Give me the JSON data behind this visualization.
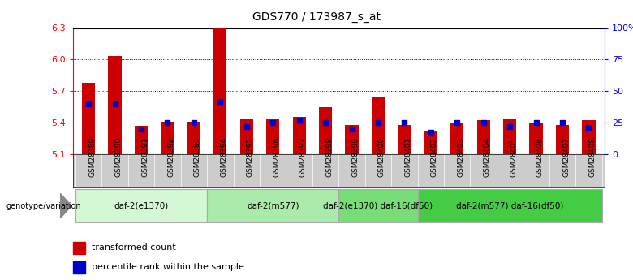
{
  "title": "GDS770 / 173987_s_at",
  "samples": [
    "GSM28389",
    "GSM28390",
    "GSM28391",
    "GSM28392",
    "GSM28393",
    "GSM28394",
    "GSM28395",
    "GSM28396",
    "GSM28397",
    "GSM28398",
    "GSM28399",
    "GSM28400",
    "GSM28401",
    "GSM28402",
    "GSM28403",
    "GSM28404",
    "GSM28405",
    "GSM28406",
    "GSM28407",
    "GSM28408"
  ],
  "transformed_count": [
    5.78,
    6.03,
    5.37,
    5.41,
    5.41,
    6.3,
    5.43,
    5.43,
    5.45,
    5.55,
    5.38,
    5.64,
    5.38,
    5.32,
    5.4,
    5.42,
    5.43,
    5.4,
    5.38,
    5.42
  ],
  "percentile": [
    40,
    40,
    20,
    25,
    25,
    42,
    22,
    25,
    27,
    25,
    20,
    25,
    25,
    17,
    25,
    25,
    22,
    25,
    25,
    21
  ],
  "ylim_left": [
    5.1,
    6.3
  ],
  "ylim_right": [
    0,
    100
  ],
  "yticks_left": [
    5.1,
    5.4,
    5.7,
    6.0,
    6.3
  ],
  "yticks_right": [
    0,
    25,
    50,
    75,
    100
  ],
  "yticks_right_labels": [
    "0",
    "25",
    "50",
    "75",
    "100%"
  ],
  "groups": [
    {
      "label": "daf-2(e1370)",
      "start": 0,
      "end": 5,
      "color": "#d4f7d4"
    },
    {
      "label": "daf-2(m577)",
      "start": 5,
      "end": 10,
      "color": "#aaeaaa"
    },
    {
      "label": "daf-2(e1370) daf-16(df50)",
      "start": 10,
      "end": 13,
      "color": "#77dd77"
    },
    {
      "label": "daf-2(m577) daf-16(df50)",
      "start": 13,
      "end": 20,
      "color": "#44cc44"
    }
  ],
  "bar_color": "#cc0000",
  "dot_color": "#0000cc",
  "bar_bottom": 5.1,
  "genotype_label": "genotype/variation",
  "legend_red": "transformed count",
  "legend_blue": "percentile rank within the sample"
}
